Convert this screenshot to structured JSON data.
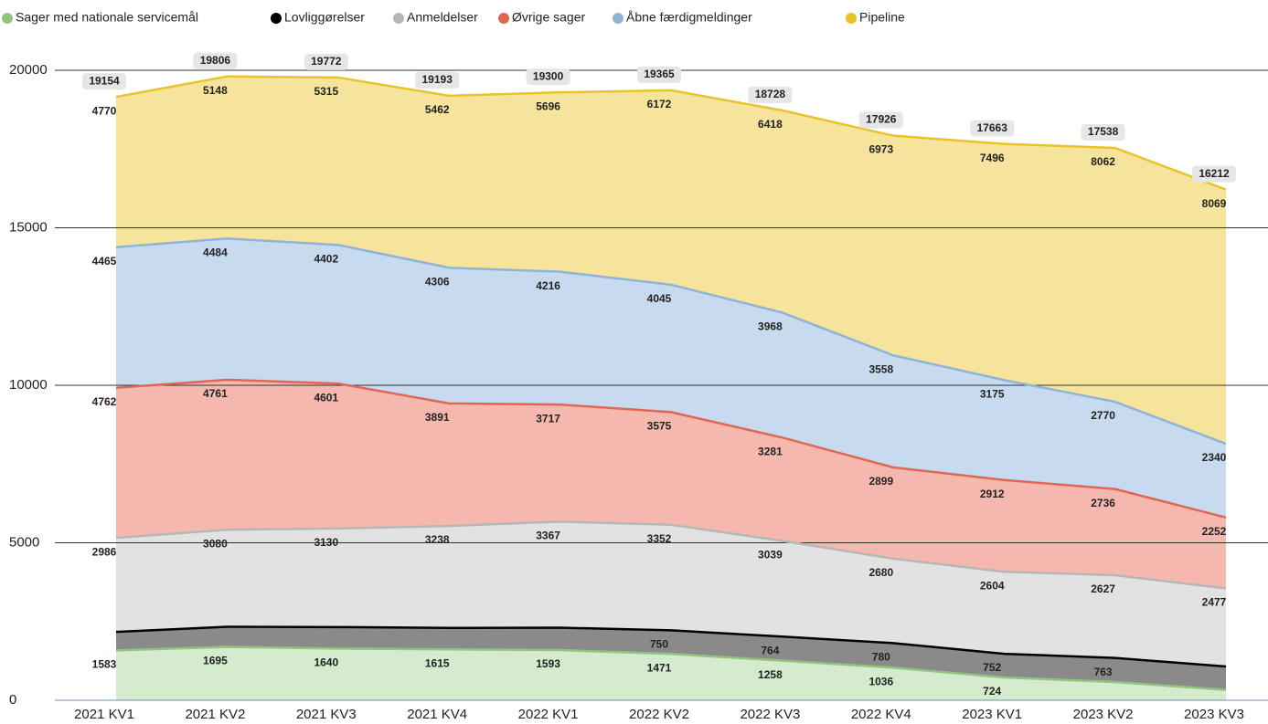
{
  "chart_data": {
    "type": "stacked_area",
    "categories": [
      "2021 KV1",
      "2021 KV2",
      "2021 KV3",
      "2021 KV4",
      "2022 KV1",
      "2022 KV2",
      "2022 KV3",
      "2022 KV4",
      "2023 KV1",
      "2023 KV2",
      "2023 KV3"
    ],
    "series": [
      {
        "name": "Sager med nationale servicemål",
        "color": "#93c47d",
        "fill": "#d4ebcd",
        "values": [
          1583,
          1695,
          1640,
          1615,
          1593,
          1471,
          1258,
          1036,
          724,
          580,
          330
        ],
        "value_labels": [
          "1583",
          "1695",
          "1640",
          "1615",
          "1593",
          "1471",
          "1258",
          "1036",
          "724",
          null,
          null
        ]
      },
      {
        "name": "Lovliggørelser",
        "color": "#000000",
        "fill": "#8a8a8a",
        "values": [
          588,
          638,
          684,
          681,
          711,
          750,
          764,
          780,
          752,
          763,
          744
        ],
        "value_labels": [
          null,
          null,
          null,
          null,
          null,
          "750",
          "764",
          "780",
          "752",
          "763",
          null
        ]
      },
      {
        "name": "Anmeldelser",
        "color": "#b7b7b7",
        "fill": "#e2e2e2",
        "values": [
          2986,
          3080,
          3130,
          3238,
          3367,
          3352,
          3039,
          2680,
          2604,
          2627,
          2477
        ],
        "value_labels": [
          "2986",
          "3080",
          "3130",
          "3238",
          "3367",
          "3352",
          "3039",
          "2680",
          "2604",
          "2627",
          "2477"
        ]
      },
      {
        "name": "Øvrige sager",
        "color": "#e06655",
        "fill": "#f4b8ae",
        "values": [
          4762,
          4761,
          4601,
          3891,
          3717,
          3575,
          3281,
          2899,
          2912,
          2736,
          2252
        ],
        "value_labels": [
          "4762",
          "4761",
          "4601",
          "3891",
          "3717",
          "3575",
          "3281",
          "2899",
          "2912",
          "2736",
          "2252"
        ]
      },
      {
        "name": "Åbne færdigmeldinger",
        "color": "#8fb4d9",
        "fill": "#c7daee",
        "values": [
          4465,
          4484,
          4402,
          4306,
          4216,
          4045,
          3968,
          3558,
          3175,
          2770,
          2340
        ],
        "value_labels": [
          "4465",
          "4484",
          "4402",
          "4306",
          "4216",
          "4045",
          "3968",
          "3558",
          "3175",
          "2770",
          "2340"
        ]
      },
      {
        "name": "Pipeline",
        "color": "#e8c32a",
        "fill": "#f6e39c",
        "values": [
          4770,
          5148,
          5315,
          5462,
          5696,
          6172,
          6418,
          6973,
          7496,
          8062,
          8069
        ],
        "value_labels": [
          "4770",
          "5148",
          "5315",
          "5462",
          "5696",
          "6172",
          "6418",
          "6973",
          "7496",
          "8062",
          "8069"
        ]
      }
    ],
    "totals": [
      19154,
      19806,
      19772,
      19193,
      19300,
      19365,
      18728,
      17926,
      17663,
      17538,
      16212
    ],
    "ylim": [
      0,
      20000
    ],
    "yticks": [
      0,
      5000,
      10000,
      15000,
      20000
    ],
    "grid": true,
    "legend": "top"
  }
}
